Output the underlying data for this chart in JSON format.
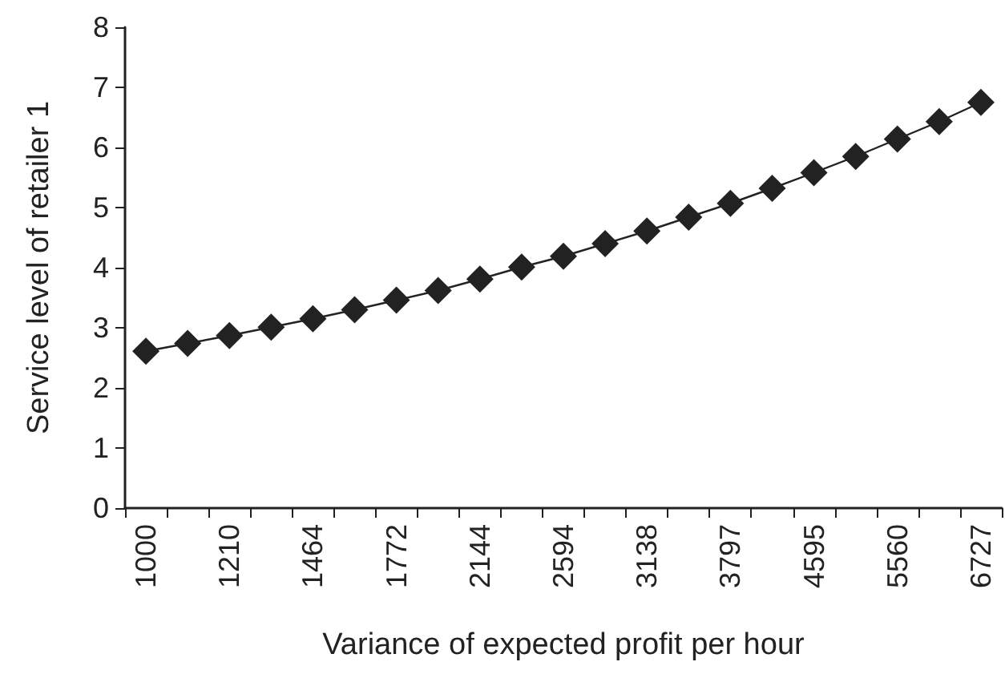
{
  "chart_data": {
    "type": "line",
    "xlabel": "Variance of expected profit per hour",
    "ylabel": "Service level of retailer 1",
    "categories": [
      "1000",
      null,
      "1210",
      null,
      "1464",
      null,
      "1772",
      null,
      "2144",
      null,
      "2594",
      null,
      "3138",
      null,
      "3797",
      null,
      "4595",
      null,
      "5560",
      null,
      "6727"
    ],
    "series": [
      {
        "color": "#222222",
        "values": [
          2.61,
          2.74,
          2.87,
          3.01,
          3.15,
          3.3,
          3.46,
          3.62,
          3.81,
          4.01,
          4.19,
          4.4,
          4.61,
          4.84,
          5.07,
          5.32,
          5.58,
          5.85,
          6.14,
          6.43,
          6.75
        ]
      }
    ],
    "ylim": [
      0,
      8
    ],
    "yticks": [
      0,
      1,
      2,
      3,
      4,
      5,
      6,
      7,
      8
    ],
    "grid": false,
    "marker": "diamond",
    "line_style": "solid"
  }
}
